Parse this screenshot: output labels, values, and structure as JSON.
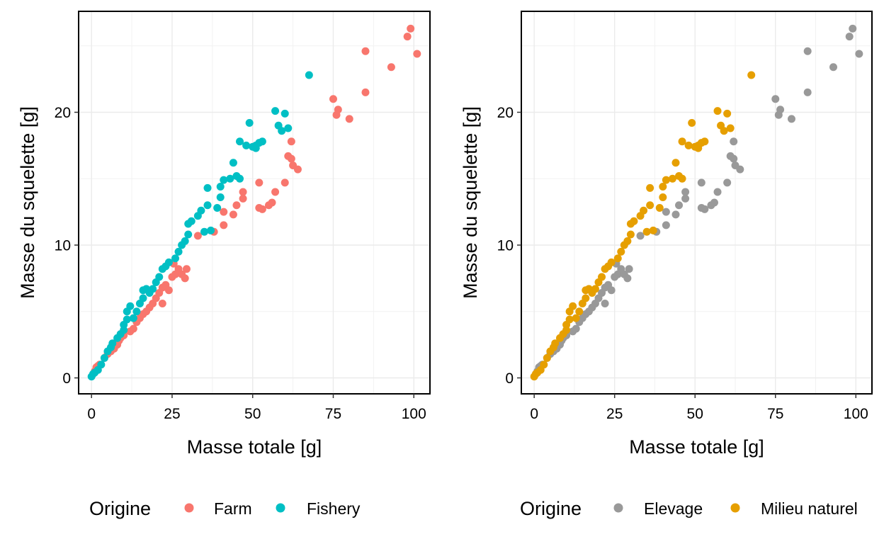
{
  "chart_data": [
    {
      "type": "scatter",
      "xlabel": "Masse totale  [g]",
      "ylabel": "Masse du squelette  [g]",
      "xlim": [
        -4,
        105
      ],
      "ylim": [
        -1.2,
        27.6
      ],
      "xticks": [
        0,
        25,
        50,
        75,
        100
      ],
      "yticks": [
        0,
        10,
        20
      ],
      "grid": true,
      "legend_title": "Origine",
      "legend_position": "bottom",
      "series": [
        {
          "name": "Farm",
          "color": "#F8766D",
          "points": [
            [
              1,
              0.5
            ],
            [
              1.5,
              0.8
            ],
            [
              2,
              0.9
            ],
            [
              2.5,
              1
            ],
            [
              4,
              1.5
            ],
            [
              5,
              1.8
            ],
            [
              6,
              2
            ],
            [
              7,
              2.2
            ],
            [
              8,
              2.5
            ],
            [
              8.5,
              2.8
            ],
            [
              9,
              3
            ],
            [
              10,
              3.2
            ],
            [
              12,
              3.5
            ],
            [
              13,
              3.7
            ],
            [
              14,
              4.2
            ],
            [
              15,
              4.5
            ],
            [
              16,
              4.8
            ],
            [
              17,
              5
            ],
            [
              18,
              5.3
            ],
            [
              19,
              5.6
            ],
            [
              20,
              6
            ],
            [
              21,
              6.4
            ],
            [
              22,
              6.8
            ],
            [
              23,
              7
            ],
            [
              22,
              5.6
            ],
            [
              24,
              6.6
            ],
            [
              25,
              7.6
            ],
            [
              26,
              7.8
            ],
            [
              27,
              8.2
            ],
            [
              28,
              7.8
            ],
            [
              29,
              7.5
            ],
            [
              29.5,
              8.2
            ],
            [
              25.5,
              8.6
            ],
            [
              33,
              10.7
            ],
            [
              38,
              11
            ],
            [
              41,
              11.5
            ],
            [
              41,
              12.5
            ],
            [
              44,
              12.3
            ],
            [
              45,
              13
            ],
            [
              47,
              13.5
            ],
            [
              47,
              14
            ],
            [
              52,
              12.8
            ],
            [
              53,
              12.7
            ],
            [
              55,
              13
            ],
            [
              56,
              13.2
            ],
            [
              52,
              14.7
            ],
            [
              57,
              14
            ],
            [
              60,
              14.7
            ],
            [
              61,
              16.7
            ],
            [
              62,
              16.5
            ],
            [
              62.5,
              16
            ],
            [
              64,
              15.7
            ],
            [
              62,
              17.8
            ],
            [
              75,
              21
            ],
            [
              76,
              19.8
            ],
            [
              76.5,
              20.2
            ],
            [
              80,
              19.5
            ],
            [
              85,
              21.5
            ],
            [
              85,
              24.6
            ],
            [
              93,
              23.4
            ],
            [
              98,
              25.7
            ],
            [
              99,
              26.3
            ],
            [
              101,
              24.4
            ]
          ]
        },
        {
          "name": "Fishery",
          "color": "#00BFC4",
          "points": [
            [
              0,
              0.1
            ],
            [
              0.5,
              0.3
            ],
            [
              1,
              0.4
            ],
            [
              2,
              0.6
            ],
            [
              3,
              1
            ],
            [
              4,
              1.5
            ],
            [
              5,
              2
            ],
            [
              6,
              2.3
            ],
            [
              6.5,
              2.6
            ],
            [
              8,
              3
            ],
            [
              9,
              3.3
            ],
            [
              10,
              3.6
            ],
            [
              10,
              4
            ],
            [
              11,
              4.4
            ],
            [
              11,
              5
            ],
            [
              12,
              5.4
            ],
            [
              13,
              4.5
            ],
            [
              14,
              5
            ],
            [
              15,
              5.6
            ],
            [
              16,
              6
            ],
            [
              16,
              6.6
            ],
            [
              17,
              6.7
            ],
            [
              18,
              6.4
            ],
            [
              19,
              6.7
            ],
            [
              20,
              7.2
            ],
            [
              21,
              7.6
            ],
            [
              22,
              8.2
            ],
            [
              23,
              8.4
            ],
            [
              24,
              8.7
            ],
            [
              26,
              9
            ],
            [
              27,
              9.5
            ],
            [
              28,
              10
            ],
            [
              29,
              10.3
            ],
            [
              30,
              10.8
            ],
            [
              30,
              11.6
            ],
            [
              31,
              11.8
            ],
            [
              33,
              12.2
            ],
            [
              34,
              12.6
            ],
            [
              36,
              13
            ],
            [
              36,
              14.3
            ],
            [
              35,
              11
            ],
            [
              37,
              11.1
            ],
            [
              39,
              12.8
            ],
            [
              40,
              13.6
            ],
            [
              40,
              14.4
            ],
            [
              41,
              14.9
            ],
            [
              43,
              15
            ],
            [
              44,
              16.2
            ],
            [
              45,
              15.2
            ],
            [
              46,
              15
            ],
            [
              46,
              17.8
            ],
            [
              48,
              17.5
            ],
            [
              49,
              19.2
            ],
            [
              50,
              17.4
            ],
            [
              51,
              17.3
            ],
            [
              51,
              17.5
            ],
            [
              52,
              17.7
            ],
            [
              53,
              17.8
            ],
            [
              57,
              20.1
            ],
            [
              58,
              19
            ],
            [
              59,
              18.6
            ],
            [
              60,
              19.9
            ],
            [
              61,
              18.8
            ],
            [
              67.5,
              22.8
            ]
          ]
        }
      ]
    },
    {
      "type": "scatter",
      "xlabel": "Masse totale [g]",
      "ylabel": "Masse du squelette [g]",
      "xlim": [
        -4,
        105
      ],
      "ylim": [
        -1.2,
        27.6
      ],
      "xticks": [
        0,
        25,
        50,
        75,
        100
      ],
      "yticks": [
        0,
        10,
        20
      ],
      "grid": true,
      "legend_title": "Origine",
      "legend_position": "bottom",
      "series": [
        {
          "name": "Elevage",
          "color": "#999999",
          "points": [
            [
              1,
              0.5
            ],
            [
              1.5,
              0.8
            ],
            [
              2,
              0.9
            ],
            [
              2.5,
              1
            ],
            [
              4,
              1.5
            ],
            [
              5,
              1.8
            ],
            [
              6,
              2
            ],
            [
              7,
              2.2
            ],
            [
              8,
              2.5
            ],
            [
              8.5,
              2.8
            ],
            [
              9,
              3
            ],
            [
              10,
              3.2
            ],
            [
              12,
              3.5
            ],
            [
              13,
              3.7
            ],
            [
              14,
              4.2
            ],
            [
              15,
              4.5
            ],
            [
              16,
              4.8
            ],
            [
              17,
              5
            ],
            [
              18,
              5.3
            ],
            [
              19,
              5.6
            ],
            [
              20,
              6
            ],
            [
              21,
              6.4
            ],
            [
              22,
              6.8
            ],
            [
              23,
              7
            ],
            [
              22,
              5.6
            ],
            [
              24,
              6.6
            ],
            [
              25,
              7.6
            ],
            [
              26,
              7.8
            ],
            [
              27,
              8.2
            ],
            [
              28,
              7.8
            ],
            [
              29,
              7.5
            ],
            [
              29.5,
              8.2
            ],
            [
              25.5,
              8.6
            ],
            [
              33,
              10.7
            ],
            [
              38,
              11
            ],
            [
              41,
              11.5
            ],
            [
              41,
              12.5
            ],
            [
              44,
              12.3
            ],
            [
              45,
              13
            ],
            [
              47,
              13.5
            ],
            [
              47,
              14
            ],
            [
              52,
              12.8
            ],
            [
              53,
              12.7
            ],
            [
              55,
              13
            ],
            [
              56,
              13.2
            ],
            [
              52,
              14.7
            ],
            [
              57,
              14
            ],
            [
              60,
              14.7
            ],
            [
              61,
              16.7
            ],
            [
              62,
              16.5
            ],
            [
              62.5,
              16
            ],
            [
              64,
              15.7
            ],
            [
              62,
              17.8
            ],
            [
              75,
              21
            ],
            [
              76,
              19.8
            ],
            [
              76.5,
              20.2
            ],
            [
              80,
              19.5
            ],
            [
              85,
              21.5
            ],
            [
              85,
              24.6
            ],
            [
              93,
              23.4
            ],
            [
              98,
              25.7
            ],
            [
              99,
              26.3
            ],
            [
              101,
              24.4
            ]
          ]
        },
        {
          "name": "Milieu naturel",
          "color": "#E69F00",
          "points": [
            [
              0,
              0.1
            ],
            [
              0.5,
              0.3
            ],
            [
              1,
              0.4
            ],
            [
              2,
              0.6
            ],
            [
              3,
              1
            ],
            [
              4,
              1.5
            ],
            [
              5,
              2
            ],
            [
              6,
              2.3
            ],
            [
              6.5,
              2.6
            ],
            [
              8,
              3
            ],
            [
              9,
              3.3
            ],
            [
              10,
              3.6
            ],
            [
              10,
              4
            ],
            [
              11,
              4.4
            ],
            [
              11,
              5
            ],
            [
              12,
              5.4
            ],
            [
              13,
              4.5
            ],
            [
              14,
              5
            ],
            [
              15,
              5.6
            ],
            [
              16,
              6
            ],
            [
              16,
              6.6
            ],
            [
              17,
              6.7
            ],
            [
              18,
              6.4
            ],
            [
              19,
              6.7
            ],
            [
              20,
              7.2
            ],
            [
              21,
              7.6
            ],
            [
              22,
              8.2
            ],
            [
              23,
              8.4
            ],
            [
              24,
              8.7
            ],
            [
              26,
              9
            ],
            [
              27,
              9.5
            ],
            [
              28,
              10
            ],
            [
              29,
              10.3
            ],
            [
              30,
              10.8
            ],
            [
              30,
              11.6
            ],
            [
              31,
              11.8
            ],
            [
              33,
              12.2
            ],
            [
              34,
              12.6
            ],
            [
              36,
              13
            ],
            [
              36,
              14.3
            ],
            [
              35,
              11
            ],
            [
              37,
              11.1
            ],
            [
              39,
              12.8
            ],
            [
              40,
              13.6
            ],
            [
              40,
              14.4
            ],
            [
              41,
              14.9
            ],
            [
              43,
              15
            ],
            [
              44,
              16.2
            ],
            [
              45,
              15.2
            ],
            [
              46,
              15
            ],
            [
              46,
              17.8
            ],
            [
              48,
              17.5
            ],
            [
              49,
              19.2
            ],
            [
              50,
              17.4
            ],
            [
              51,
              17.3
            ],
            [
              51,
              17.5
            ],
            [
              52,
              17.7
            ],
            [
              53,
              17.8
            ],
            [
              57,
              20.1
            ],
            [
              58,
              19
            ],
            [
              59,
              18.6
            ],
            [
              60,
              19.9
            ],
            [
              61,
              18.8
            ],
            [
              67.5,
              22.8
            ]
          ]
        }
      ]
    }
  ]
}
